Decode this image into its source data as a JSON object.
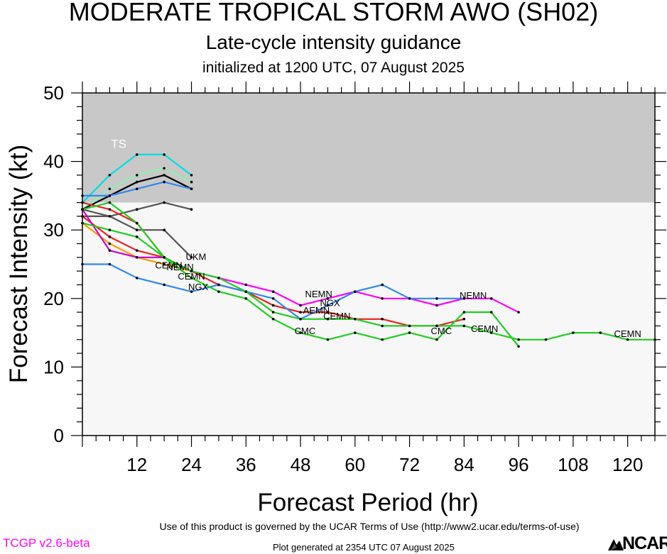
{
  "header": {
    "title": "MODERATE TROPICAL STORM AWO (SH02)",
    "subtitle": "Late-cycle intensity guidance",
    "init": "initialized at 1200 UTC, 07 August 2025"
  },
  "footer": {
    "terms": "Use of this product is governed by the UCAR Terms of Use (http://www2.ucar.edu/terms-of-use)",
    "version": "TCGP v2.6-beta",
    "generated": "Plot generated at 2354 UTC   07 August 2025",
    "logo": "NCAR"
  },
  "chart_data": {
    "type": "line",
    "xlabel": "Forecast Period (hr)",
    "ylabel": "Forecast Intensity (kt)",
    "xlim": [
      0,
      126
    ],
    "ylim": [
      0,
      50
    ],
    "xticks": [
      12,
      24,
      36,
      48,
      60,
      72,
      84,
      96,
      108,
      120
    ],
    "yticks": [
      0,
      10,
      20,
      30,
      40,
      50
    ],
    "bands": [
      {
        "label": "TS",
        "from": 34,
        "to": 50,
        "color": "#c8c8c8"
      },
      {
        "label": "",
        "from": 0,
        "to": 34,
        "color": "#f7f7f7"
      }
    ],
    "series": [
      {
        "color": "#00dddd",
        "label": "",
        "points": [
          [
            0,
            34
          ],
          [
            6,
            38
          ],
          [
            12,
            41
          ],
          [
            18,
            41
          ],
          [
            24,
            38
          ]
        ]
      },
      {
        "color": "#90eeb0",
        "label": "",
        "points": [
          [
            0,
            33
          ],
          [
            6,
            36
          ],
          [
            12,
            38
          ],
          [
            18,
            39
          ],
          [
            24,
            37
          ]
        ]
      },
      {
        "color": "#000000",
        "label": "",
        "points": [
          [
            0,
            33
          ],
          [
            6,
            35
          ],
          [
            12,
            37
          ],
          [
            18,
            38
          ],
          [
            24,
            36
          ]
        ]
      },
      {
        "color": "#3388ee",
        "label": "",
        "points": [
          [
            0,
            35
          ],
          [
            6,
            35
          ],
          [
            12,
            36
          ],
          [
            18,
            37
          ],
          [
            24,
            36
          ]
        ]
      },
      {
        "color": "#555555",
        "label": "",
        "points": [
          [
            0,
            32
          ],
          [
            6,
            32
          ],
          [
            12,
            33
          ],
          [
            18,
            34
          ],
          [
            24,
            33
          ]
        ]
      },
      {
        "color": "#555555",
        "label": "UKM",
        "points": [
          [
            0,
            33
          ],
          [
            6,
            32
          ],
          [
            12,
            30
          ],
          [
            18,
            30
          ],
          [
            24,
            26
          ]
        ]
      },
      {
        "color": "#ee2222",
        "label": "",
        "points": [
          [
            0,
            32
          ],
          [
            6,
            29
          ],
          [
            12,
            27
          ],
          [
            18,
            26
          ],
          [
            24,
            24
          ],
          [
            30,
            22
          ],
          [
            36,
            21
          ],
          [
            42,
            19
          ],
          [
            48,
            18
          ],
          [
            54,
            18
          ],
          [
            60,
            17
          ],
          [
            66,
            17
          ],
          [
            72,
            16
          ],
          [
            78,
            16
          ],
          [
            84,
            17
          ]
        ]
      },
      {
        "color": "#ee2222",
        "label": "",
        "points": [
          [
            0,
            34
          ],
          [
            6,
            33
          ],
          [
            12,
            31
          ],
          [
            18,
            26
          ],
          [
            24,
            23
          ]
        ]
      },
      {
        "color": "#ff9900",
        "label": "",
        "points": [
          [
            0,
            31
          ],
          [
            6,
            28
          ],
          [
            12,
            26
          ],
          [
            18,
            25
          ],
          [
            24,
            24
          ]
        ]
      },
      {
        "color": "#cc00cc",
        "label": "",
        "points": [
          [
            0,
            33
          ],
          [
            6,
            27
          ],
          [
            12,
            26
          ],
          [
            18,
            26
          ],
          [
            24,
            24
          ]
        ]
      },
      {
        "color": "#ff00ff",
        "label": "NEMN",
        "points": [
          [
            24,
            24
          ],
          [
            30,
            23
          ],
          [
            36,
            22
          ],
          [
            42,
            21
          ],
          [
            48,
            19
          ],
          [
            54,
            20
          ],
          [
            60,
            21
          ],
          [
            66,
            20
          ],
          [
            72,
            20
          ],
          [
            78,
            19
          ],
          [
            84,
            20
          ],
          [
            90,
            20
          ],
          [
            96,
            18
          ]
        ]
      },
      {
        "color": "#3388ee",
        "label": "NGX",
        "points": [
          [
            0,
            25
          ],
          [
            6,
            25
          ],
          [
            12,
            23
          ],
          [
            18,
            22
          ],
          [
            24,
            21
          ],
          [
            30,
            22
          ],
          [
            36,
            21
          ],
          [
            42,
            20
          ],
          [
            48,
            17
          ],
          [
            54,
            19
          ],
          [
            60,
            21
          ],
          [
            66,
            22
          ],
          [
            72,
            20
          ],
          [
            78,
            20
          ],
          [
            84,
            20
          ]
        ]
      },
      {
        "color": "#22cc22",
        "label": "CEMN",
        "points": [
          [
            0,
            33
          ],
          [
            6,
            34
          ],
          [
            12,
            31
          ],
          [
            18,
            26
          ],
          [
            24,
            24
          ],
          [
            30,
            23
          ],
          [
            36,
            21
          ],
          [
            42,
            18
          ],
          [
            48,
            17
          ],
          [
            54,
            17
          ],
          [
            60,
            17
          ],
          [
            66,
            16
          ],
          [
            72,
            16
          ],
          [
            78,
            16
          ],
          [
            84,
            16
          ],
          [
            90,
            15
          ],
          [
            96,
            14
          ],
          [
            102,
            14
          ],
          [
            108,
            15
          ],
          [
            114,
            15
          ],
          [
            120,
            14
          ],
          [
            126,
            14
          ]
        ]
      },
      {
        "color": "#22cc22",
        "label": "CMC",
        "points": [
          [
            0,
            31
          ],
          [
            6,
            30
          ],
          [
            12,
            29
          ],
          [
            18,
            26
          ],
          [
            24,
            23
          ],
          [
            30,
            21
          ],
          [
            36,
            20
          ],
          [
            42,
            17
          ],
          [
            48,
            15
          ],
          [
            54,
            14
          ],
          [
            60,
            15
          ],
          [
            66,
            14
          ],
          [
            72,
            15
          ],
          [
            78,
            14
          ],
          [
            84,
            18
          ],
          [
            90,
            18
          ],
          [
            96,
            13
          ]
        ]
      }
    ],
    "labels": [
      {
        "text": "TS",
        "x": 8,
        "y": 42,
        "color": "#ffffff"
      },
      {
        "text": "UKM",
        "x": 25,
        "y": 25.6,
        "color": "#000000"
      },
      {
        "text": "CEMN",
        "x": 19,
        "y": 24.4,
        "color": "#000000"
      },
      {
        "text": "NEMN",
        "x": 21.5,
        "y": 24.1,
        "color": "#000000"
      },
      {
        "text": "CEMN",
        "x": 24,
        "y": 22.8,
        "color": "#000000"
      },
      {
        "text": "NGX",
        "x": 25.5,
        "y": 21.2,
        "color": "#000000"
      },
      {
        "text": "NEMN",
        "x": 52,
        "y": 20.2,
        "color": "#000000"
      },
      {
        "text": "NGX",
        "x": 54.5,
        "y": 18.9,
        "color": "#000000"
      },
      {
        "text": "AEMN",
        "x": 51.5,
        "y": 17.8,
        "color": "#000000"
      },
      {
        "text": "CEMN",
        "x": 56,
        "y": 17,
        "color": "#000000"
      },
      {
        "text": "CMC",
        "x": 49,
        "y": 14.8,
        "color": "#000000"
      },
      {
        "text": "CMC",
        "x": 79,
        "y": 14.8,
        "color": "#000000"
      },
      {
        "text": "NEMN",
        "x": 86,
        "y": 20,
        "color": "#000000"
      },
      {
        "text": "CEMN",
        "x": 88.5,
        "y": 15.1,
        "color": "#000000"
      },
      {
        "text": "CEMN",
        "x": 120,
        "y": 14.4,
        "color": "#000000"
      }
    ]
  }
}
